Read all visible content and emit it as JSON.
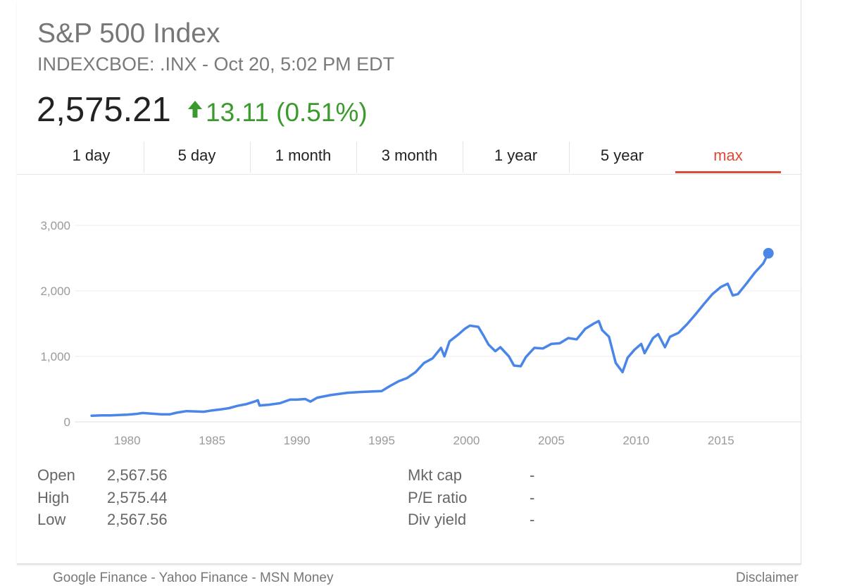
{
  "header": {
    "title": "S&P 500 Index",
    "subtitle": "INDEXCBOE: .INX - Oct 20, 5:02 PM EDT",
    "price": "2,575.21",
    "change": "13.11 (0.51%)",
    "change_direction": "up",
    "change_color": "#3b9a2d"
  },
  "tabs": [
    {
      "label": "1 day"
    },
    {
      "label": "5 day"
    },
    {
      "label": "1 month"
    },
    {
      "label": "3 month"
    },
    {
      "label": "1 year"
    },
    {
      "label": "5 year"
    },
    {
      "label": "max",
      "active": true
    }
  ],
  "chart_data": {
    "type": "line",
    "title": "",
    "xlabel": "",
    "ylabel": "",
    "line_color": "#4a86e8",
    "grid": true,
    "xlim": [
      1976.9,
      2019.7
    ],
    "ylim": [
      0,
      3000
    ],
    "xticks": [
      {
        "value": 1980,
        "label": "1980"
      },
      {
        "value": 1985,
        "label": "1985"
      },
      {
        "value": 1990,
        "label": "1990"
      },
      {
        "value": 1995,
        "label": "1995"
      },
      {
        "value": 2000,
        "label": "2000"
      },
      {
        "value": 2005,
        "label": "2005"
      },
      {
        "value": 2010,
        "label": "2010"
      },
      {
        "value": 2015,
        "label": "2015"
      }
    ],
    "yticks": [
      {
        "value": 0,
        "label": "0"
      },
      {
        "value": 1000,
        "label": "1,000"
      },
      {
        "value": 2000,
        "label": "2,000"
      },
      {
        "value": 3000,
        "label": "3,000"
      }
    ],
    "series": [
      {
        "x": [
          1977.9,
          1978.5,
          1979.0,
          1979.5,
          1980.0,
          1980.5,
          1980.9,
          1981.5,
          1982.0,
          1982.5,
          1982.9,
          1983.5,
          1984.0,
          1984.5,
          1985.0,
          1985.5,
          1986.0,
          1986.5,
          1987.0,
          1987.5,
          1987.7,
          1987.8,
          1988.3,
          1989.0,
          1989.6,
          1990.0,
          1990.5,
          1990.8,
          1991.2,
          1992.0,
          1993.0,
          1994.0,
          1995.0,
          1995.5,
          1996.0,
          1996.5,
          1997.0,
          1997.5,
          1998.0,
          1998.5,
          1998.7,
          1999.0,
          1999.5,
          1999.9,
          2000.2,
          2000.7,
          2001.0,
          2001.3,
          2001.7,
          2002.0,
          2002.5,
          2002.8,
          2003.2,
          2003.5,
          2004.0,
          2004.5,
          2005.0,
          2005.5,
          2006.0,
          2006.5,
          2007.0,
          2007.5,
          2007.8,
          2008.0,
          2008.4,
          2008.8,
          2009.2,
          2009.5,
          2009.9,
          2010.3,
          2010.5,
          2011.0,
          2011.3,
          2011.7,
          2012.0,
          2012.5,
          2013.0,
          2013.5,
          2014.0,
          2014.5,
          2015.0,
          2015.4,
          2015.7,
          2016.0,
          2016.5,
          2017.0,
          2017.5,
          2017.8
        ],
        "values": [
          95,
          100,
          100,
          105,
          110,
          120,
          135,
          125,
          115,
          115,
          140,
          165,
          160,
          155,
          175,
          190,
          210,
          245,
          270,
          310,
          330,
          250,
          260,
          285,
          340,
          340,
          350,
          310,
          370,
          410,
          445,
          460,
          470,
          550,
          620,
          670,
          760,
          900,
          970,
          1130,
          1000,
          1230,
          1330,
          1420,
          1470,
          1450,
          1320,
          1180,
          1080,
          1140,
          1000,
          860,
          850,
          990,
          1130,
          1120,
          1190,
          1200,
          1280,
          1260,
          1420,
          1500,
          1540,
          1400,
          1300,
          900,
          760,
          980,
          1100,
          1190,
          1050,
          1280,
          1340,
          1140,
          1300,
          1360,
          1490,
          1640,
          1800,
          1950,
          2060,
          2110,
          1930,
          1950,
          2110,
          2280,
          2420,
          2575
        ]
      }
    ]
  },
  "stats": {
    "left": [
      {
        "label": "Open",
        "value": "2,567.56"
      },
      {
        "label": "High",
        "value": "2,575.44"
      },
      {
        "label": "Low",
        "value": "2,567.56"
      }
    ],
    "right": [
      {
        "label": "Mkt cap",
        "value": "-"
      },
      {
        "label": "P/E ratio",
        "value": "-"
      },
      {
        "label": "Div yield",
        "value": "-"
      }
    ]
  },
  "footer": {
    "sources": "Google Finance - Yahoo Finance - MSN Money",
    "disclaimer": "Disclaimer"
  }
}
